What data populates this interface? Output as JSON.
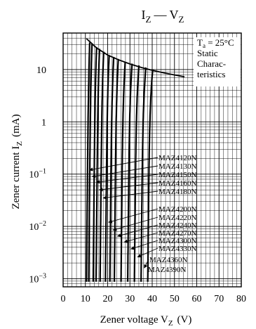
{
  "chart_data": {
    "type": "line",
    "title": "I",
    "title_sub_1": "Z",
    "title_dash": "—",
    "title_v": "V",
    "title_sub_2": "Z",
    "xlabel": "Zener voltage  V",
    "xlabel_sub": "Z",
    "xlabel_unit": "(V)",
    "ylabel": "Zener current  I",
    "ylabel_sub": "Z",
    "ylabel_unit": "(mA)",
    "x_scale": "linear",
    "y_scale": "log",
    "xlim": [
      0,
      80
    ],
    "ylim": [
      0.0007,
      50
    ],
    "x_ticks": [
      "0",
      "10",
      "20",
      "30",
      "40",
      "50",
      "60",
      "70",
      "80"
    ],
    "y_ticks": [
      {
        "value": 10,
        "label": "10"
      },
      {
        "value": 1,
        "label": "1"
      },
      {
        "value": 0.1,
        "label": "10",
        "exp": "−1"
      },
      {
        "value": 0.01,
        "label": "10",
        "exp": "−2"
      },
      {
        "value": 0.001,
        "label": "10",
        "exp": "−3"
      }
    ],
    "grid": true,
    "condition_box": {
      "line1_prefix": "T",
      "line1_sub": "a",
      "line1_suffix": " = 25°C",
      "line2": "Static",
      "line3": "Charac-",
      "line4": "teristics"
    },
    "power_limit_curve": {
      "x": [
        10.5,
        15,
        20,
        25,
        30,
        35,
        40,
        45,
        50,
        54.5
      ],
      "y": [
        39,
        26,
        19,
        15.3,
        12.8,
        11,
        9.7,
        8.7,
        7.9,
        7.3
      ]
    },
    "series": [
      {
        "name": "MAZ4120N",
        "vz": 11.5,
        "imax": 33.0,
        "sharp": 0.12
      },
      {
        "name": "MAZ4130N",
        "vz": 12.5,
        "imax": 31.0,
        "sharp": 0.13
      },
      {
        "name": "MAZ4150N",
        "vz": 14.5,
        "imax": 27.0,
        "sharp": 0.15
      },
      {
        "name": "MAZ4160N",
        "vz": 15.8,
        "imax": 25.0,
        "sharp": 0.16
      },
      {
        "name": "MAZ4180N",
        "vz": 17.6,
        "imax": 22.0,
        "sharp": 0.18
      },
      {
        "name": "MAZ4200N",
        "vz": 20.0,
        "imax": 19.0,
        "sharp": 0.2
      },
      {
        "name": "MAZ4220N",
        "vz": 22.0,
        "imax": 17.5,
        "sharp": 0.22
      },
      {
        "name": "MAZ4240N",
        "vz": 24.0,
        "imax": 16.0,
        "sharp": 0.24
      },
      {
        "name": "MAZ4270N",
        "vz": 27.0,
        "imax": 14.0,
        "sharp": 0.27
      },
      {
        "name": "MAZ4300N",
        "vz": 30.0,
        "imax": 13.0,
        "sharp": 0.3
      },
      {
        "name": "MAZ4330N",
        "vz": 33.0,
        "imax": 12.0,
        "sharp": 0.33
      },
      {
        "name": "MAZ4360N",
        "vz": 36.0,
        "imax": 11.0,
        "sharp": 0.36
      },
      {
        "name": "MAZ4390N",
        "vz": 39.0,
        "imax": 10.0,
        "sharp": 0.39
      }
    ],
    "annotations": [
      {
        "label": "MAZ4120N",
        "arrow_to": [
          11.8,
          0.12
        ]
      },
      {
        "label": "MAZ4130N",
        "arrow_to": [
          13.0,
          0.09
        ]
      },
      {
        "label": "MAZ4150N",
        "arrow_to": [
          14.9,
          0.07
        ]
      },
      {
        "label": "MAZ4160N",
        "arrow_to": [
          16.2,
          0.05
        ]
      },
      {
        "label": "MAZ4180N",
        "arrow_to": [
          18.0,
          0.035
        ]
      },
      {
        "label": "MAZ4200N",
        "arrow_to": [
          20.4,
          0.012
        ]
      },
      {
        "label": "MAZ4220N",
        "arrow_to": [
          22.4,
          0.0085
        ]
      },
      {
        "label": "MAZ4240N",
        "arrow_to": [
          24.4,
          0.0065
        ]
      },
      {
        "label": "MAZ4270N",
        "arrow_to": [
          27.4,
          0.005
        ]
      },
      {
        "label": "MAZ4300N",
        "arrow_to": [
          30.4,
          0.0037
        ]
      },
      {
        "label": "MAZ4330N",
        "arrow_to": [
          33.4,
          0.0026
        ]
      },
      {
        "label": "MAZ4360N",
        "arrow_to": [
          36.4,
          0.0016
        ]
      },
      {
        "label": "MAZ4390N",
        "arrow_to": null
      }
    ]
  }
}
